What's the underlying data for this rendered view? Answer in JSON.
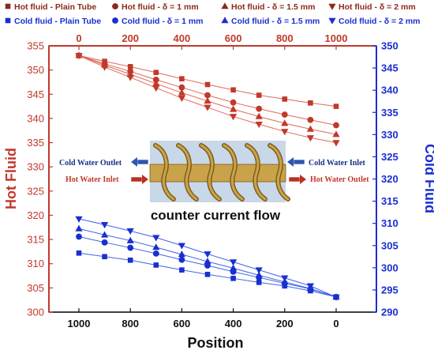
{
  "colors": {
    "hot": "#c0392b",
    "hot_line": "#e06a5a",
    "cold": "#1a2fd0",
    "cold_line": "#3f63e8",
    "axis_black": "#111111",
    "tube": "#c9a24a",
    "tube_dark": "#7a5a18",
    "pipe_bg": "#c9d8e8"
  },
  "legend": {
    "rows": [
      [
        {
          "label": "Hot fluid - Plain Tube",
          "marker": "square",
          "color": "#8b2a1a"
        },
        {
          "label": "Hot fluid - δ = 1 mm",
          "marker": "circle",
          "color": "#8b2a1a"
        },
        {
          "label": "Hot fluid - δ = 1.5 mm",
          "marker": "triangle-up",
          "color": "#8b2a1a"
        },
        {
          "label": "Hot fluid - δ = 2 mm",
          "marker": "triangle-down",
          "color": "#8b2a1a"
        }
      ],
      [
        {
          "label": "Cold fluid - Plain Tube",
          "marker": "square",
          "color": "#1a2fd0"
        },
        {
          "label": "Cold fluid - δ = 1 mm",
          "marker": "circle",
          "color": "#1a2fd0"
        },
        {
          "label": "Cold fluid - δ = 1.5 mm",
          "marker": "triangle-up",
          "color": "#1a2fd0"
        },
        {
          "label": "Cold fluid - δ = 2 mm",
          "marker": "triangle-down",
          "color": "#1a2fd0"
        }
      ]
    ]
  },
  "inset": {
    "caption": "counter current flow",
    "labels": {
      "cold_outlet": "Cold Water Outlet",
      "cold_inlet": "Cold Water Inlet",
      "hot_inlet": "Hot Water Inlet",
      "hot_outlet": "Hot Water Outlet"
    }
  },
  "chart_data": {
    "type": "line",
    "xlabel": "Position",
    "ylabel_left": "Hot Fluid",
    "ylabel_right": "Cold Fluid",
    "x_bottom_ticks": [
      "1000",
      "800",
      "600",
      "400",
      "200",
      "0"
    ],
    "x_top_ticks": [
      "0",
      "200",
      "400",
      "600",
      "800",
      "1000"
    ],
    "y_left_ticks": [
      "300",
      "305",
      "310",
      "315",
      "320",
      "325",
      "330",
      "335",
      "340",
      "345",
      "350",
      "355"
    ],
    "y_right_ticks": [
      "290",
      "295",
      "300",
      "305",
      "310",
      "315",
      "320",
      "325",
      "330",
      "335",
      "340",
      "345",
      "350"
    ],
    "ylim_left": [
      300,
      355
    ],
    "ylim_right": [
      290,
      350
    ],
    "xlim": [
      1000,
      0
    ],
    "hot_axis": "top",
    "cold_axis": "bottom",
    "series": [
      {
        "name": "Hot fluid - Plain Tube",
        "group": "hot",
        "marker": "square",
        "x": [
          0,
          100,
          200,
          300,
          400,
          500,
          600,
          700,
          800,
          900,
          1000
        ],
        "y": [
          353.0,
          351.8,
          350.7,
          349.5,
          348.2,
          347.0,
          345.9,
          344.8,
          344.0,
          343.2,
          342.5
        ]
      },
      {
        "name": "Hot fluid - δ = 1 mm",
        "group": "hot",
        "marker": "circle",
        "x": [
          0,
          100,
          200,
          300,
          400,
          500,
          600,
          700,
          800,
          900,
          1000
        ],
        "y": [
          353.0,
          351.3,
          349.7,
          348.0,
          346.4,
          344.8,
          343.3,
          342.0,
          340.8,
          339.7,
          338.6
        ]
      },
      {
        "name": "Hot fluid - δ = 1.5 mm",
        "group": "hot",
        "marker": "triangle-up",
        "x": [
          0,
          100,
          200,
          300,
          400,
          500,
          600,
          700,
          800,
          900,
          1000
        ],
        "y": [
          353.0,
          351.0,
          349.1,
          347.2,
          345.3,
          343.6,
          341.9,
          340.4,
          339.0,
          337.8,
          336.7
        ]
      },
      {
        "name": "Hot fluid - δ = 2 mm",
        "group": "hot",
        "marker": "triangle-down",
        "x": [
          0,
          100,
          200,
          300,
          400,
          500,
          600,
          700,
          800,
          900,
          1000
        ],
        "y": [
          353.0,
          350.6,
          348.5,
          346.3,
          344.2,
          342.3,
          340.4,
          338.8,
          337.3,
          336.0,
          335.0
        ]
      },
      {
        "name": "Cold fluid - Plain Tube",
        "group": "cold",
        "marker": "square",
        "x": [
          1000,
          900,
          800,
          700,
          600,
          500,
          400,
          300,
          200,
          100,
          0
        ],
        "y": [
          303.3,
          302.5,
          301.7,
          300.6,
          299.5,
          298.5,
          297.6,
          296.7,
          295.9,
          294.8,
          293.4
        ]
      },
      {
        "name": "Cold fluid - δ = 1 mm",
        "group": "cold",
        "marker": "circle",
        "x": [
          1000,
          900,
          800,
          700,
          600,
          500,
          400,
          300,
          200,
          100,
          0
        ],
        "y": [
          307.0,
          305.7,
          304.5,
          303.2,
          301.8,
          300.5,
          299.1,
          297.8,
          296.5,
          295.2,
          293.4
        ]
      },
      {
        "name": "Cold fluid - δ = 1.5 mm",
        "group": "cold",
        "marker": "triangle-up",
        "x": [
          1000,
          900,
          800,
          700,
          600,
          500,
          400,
          300,
          200,
          100,
          0
        ],
        "y": [
          308.8,
          307.4,
          306.1,
          304.6,
          303.0,
          301.4,
          299.9,
          298.3,
          296.8,
          295.3,
          293.4
        ]
      },
      {
        "name": "Cold fluid - δ = 2 mm",
        "group": "cold",
        "marker": "triangle-down",
        "x": [
          1000,
          900,
          800,
          700,
          600,
          500,
          400,
          300,
          200,
          100,
          0
        ],
        "y": [
          311.0,
          309.7,
          308.3,
          306.8,
          305.0,
          303.1,
          301.3,
          299.5,
          297.7,
          295.9,
          293.4
        ]
      }
    ]
  }
}
